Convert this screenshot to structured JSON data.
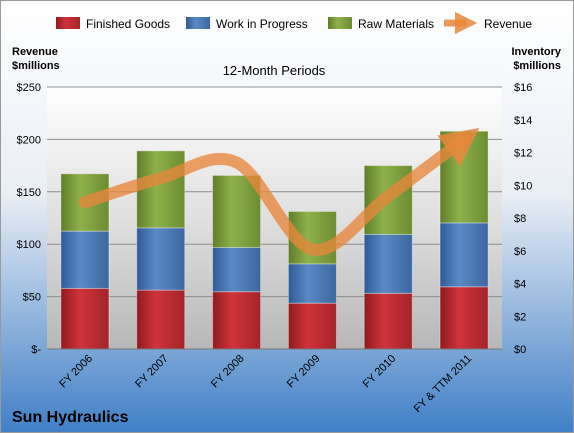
{
  "chart_data": {
    "type": "bar",
    "title": "12-Month Periods",
    "company": "Sun Hydraulics",
    "left_axis_label_line1": "Revenue",
    "left_axis_label_line2": "$millions",
    "right_axis_label_line1": "Inventory",
    "right_axis_label_line2": "$millions",
    "categories": [
      "FY 2006",
      "FY 2007",
      "FY 2008",
      "FY 2009",
      "FY 2010",
      "FY & TTM 2011"
    ],
    "left_ticks": [
      "$-",
      "$50",
      "$100",
      "$150",
      "$200",
      "$250"
    ],
    "right_ticks": [
      "$0",
      "$2",
      "$4",
      "$6",
      "$8",
      "$10",
      "$12",
      "$14",
      "$16"
    ],
    "ylim_right": [
      0,
      16
    ],
    "ylim_left": [
      0,
      250
    ],
    "legend_position": "top",
    "stacked": true,
    "series": [
      {
        "name": "Finished Goods",
        "axis": "right",
        "color": "#c0272d",
        "values": [
          3.7,
          3.6,
          3.5,
          2.8,
          3.4,
          3.8
        ]
      },
      {
        "name": "Work in Progress",
        "axis": "right",
        "color": "#4f7dbf",
        "values": [
          3.5,
          3.8,
          2.7,
          2.4,
          3.6,
          3.9
        ]
      },
      {
        "name": "Raw Materials",
        "axis": "right",
        "color": "#8aab46",
        "values": [
          3.5,
          4.7,
          4.4,
          3.2,
          4.2,
          5.6
        ]
      }
    ],
    "line_series": {
      "name": "Revenue",
      "axis": "left",
      "color": "#e8873b",
      "values": [
        140,
        163,
        178,
        95,
        146,
        200
      ]
    }
  }
}
